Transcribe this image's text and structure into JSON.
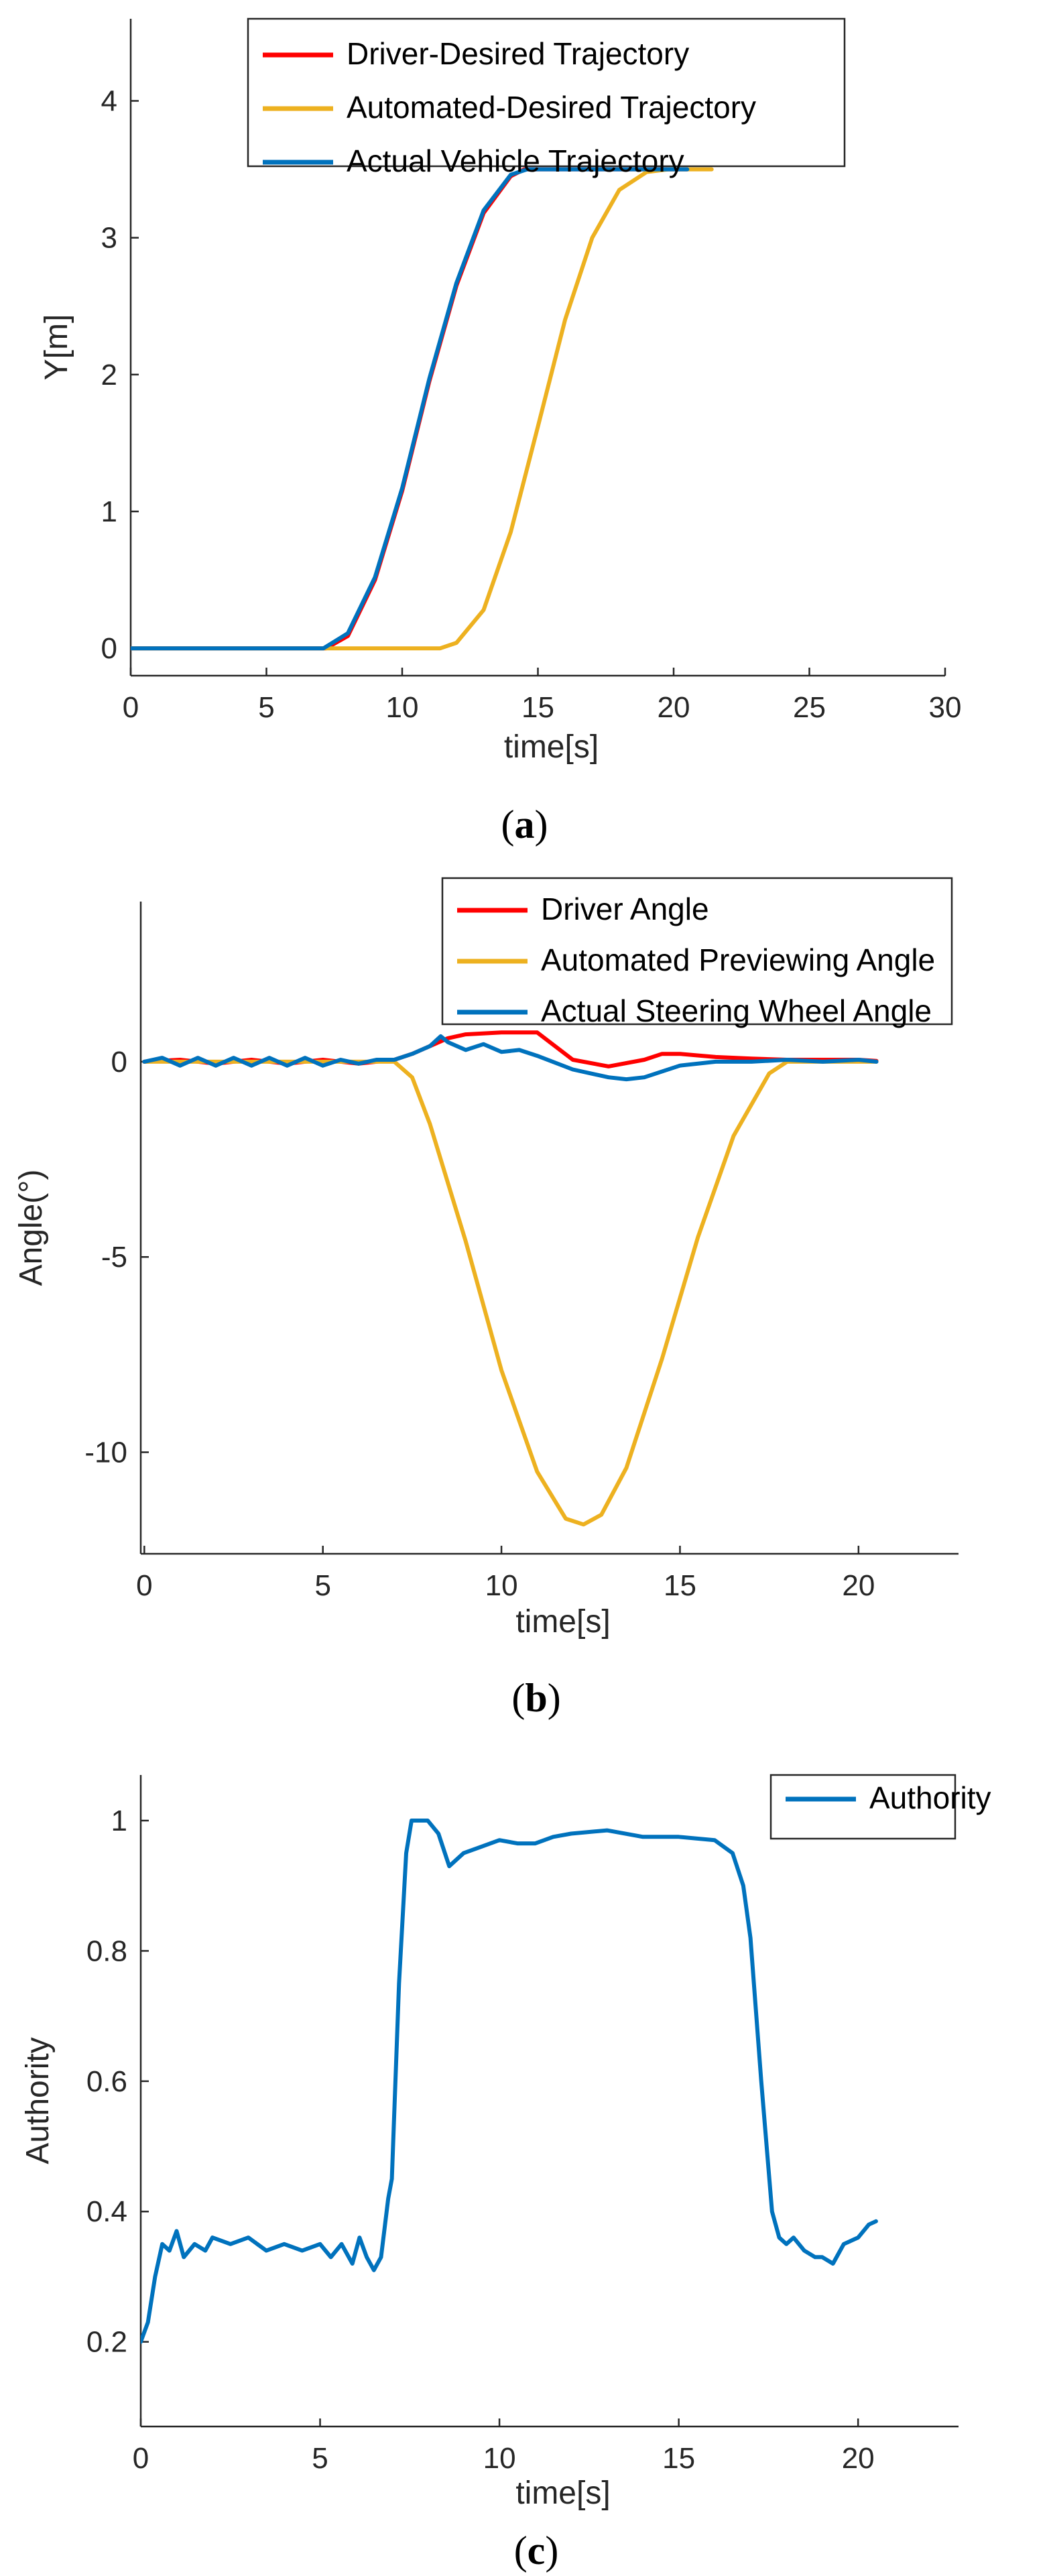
{
  "colors": {
    "red": "#ff0000",
    "yellow": "#edb120",
    "blue": "#0072bd",
    "axis": "#262626"
  },
  "chart_data": [
    {
      "type": "line",
      "caption_label": "a",
      "xlabel": "time[s]",
      "ylabel": "Y[m]",
      "xlim": [
        0,
        30
      ],
      "ylim": [
        -0.2,
        4.6
      ],
      "xticks": [
        0,
        5,
        10,
        15,
        20,
        25,
        30
      ],
      "yticks": [
        0,
        1,
        2,
        3,
        4
      ],
      "legend_position": "top-right",
      "series": [
        {
          "name": "Driver-Desired Trajectory",
          "color": "#ff0000",
          "x": [
            0,
            7.2,
            8,
            9,
            10,
            11,
            12,
            13,
            14,
            14.5,
            15,
            20.5
          ],
          "y": [
            0,
            0,
            0.09,
            0.5,
            1.15,
            1.95,
            2.65,
            3.18,
            3.45,
            3.5,
            3.5,
            3.5
          ]
        },
        {
          "name": "Automated-Desired Trajectory",
          "color": "#edb120",
          "x": [
            0,
            11.4,
            12,
            13,
            14,
            15,
            16,
            17,
            18,
            19,
            19.8,
            21.4
          ],
          "y": [
            0,
            0,
            0.04,
            0.28,
            0.85,
            1.62,
            2.4,
            3.0,
            3.35,
            3.48,
            3.5,
            3.5
          ]
        },
        {
          "name": "Actual Vehicle Trajectory",
          "color": "#0072bd",
          "x": [
            0,
            7.1,
            8,
            9,
            10,
            11,
            12,
            13,
            14,
            14.6,
            15.2,
            20.5
          ],
          "y": [
            0,
            0,
            0.11,
            0.52,
            1.17,
            1.97,
            2.67,
            3.2,
            3.46,
            3.5,
            3.5,
            3.5
          ]
        }
      ]
    },
    {
      "type": "line",
      "caption_label": "b",
      "xlabel": "time[s]",
      "ylabel": "Angle(°)",
      "xlim": [
        -0.1,
        22.8
      ],
      "ylim": [
        -12.6,
        4.1
      ],
      "xticks": [
        0,
        5,
        10,
        15,
        20
      ],
      "yticks": [
        0,
        -5,
        -10
      ],
      "legend_position": "top-right",
      "series": [
        {
          "name": "Driver Angle",
          "color": "#ff0000",
          "x": [
            0,
            1,
            2,
            3,
            4,
            5,
            6,
            7,
            7.5,
            8,
            8.5,
            9,
            10,
            11,
            11.5,
            12,
            13,
            14,
            14.5,
            15,
            16,
            17,
            18,
            19,
            20,
            20.5
          ],
          "y": [
            0,
            0.05,
            -0.05,
            0.05,
            -0.05,
            0.05,
            -0.05,
            0.05,
            0.2,
            0.4,
            0.6,
            0.7,
            0.75,
            0.75,
            0.4,
            0.05,
            -0.12,
            0.05,
            0.2,
            0.2,
            0.12,
            0.08,
            0.05,
            0.05,
            0.05,
            0.02
          ]
        },
        {
          "name": "Automated Previewing Angle",
          "color": "#edb120",
          "x": [
            0,
            7,
            7.5,
            8,
            9,
            10,
            11,
            11.8,
            12.3,
            12.8,
            13.5,
            14.5,
            15.5,
            16.5,
            17.5,
            18,
            20.5
          ],
          "y": [
            0,
            0,
            -0.4,
            -1.6,
            -4.6,
            -7.9,
            -10.5,
            -11.7,
            -11.85,
            -11.6,
            -10.4,
            -7.6,
            -4.5,
            -1.9,
            -0.3,
            0,
            0
          ]
        },
        {
          "name": "Actual Steering Wheel Angle",
          "color": "#0072bd",
          "x": [
            0,
            0.5,
            1,
            1.5,
            2,
            2.5,
            3,
            3.5,
            4,
            4.5,
            5,
            5.5,
            6,
            6.5,
            7,
            7.5,
            8,
            8.3,
            8.5,
            9,
            9.5,
            10,
            10.5,
            11,
            12,
            13,
            13.5,
            14,
            15,
            16,
            17,
            18,
            19,
            20,
            20.5
          ],
          "y": [
            0,
            0.1,
            -0.1,
            0.1,
            -0.1,
            0.1,
            -0.1,
            0.1,
            -0.1,
            0.1,
            -0.1,
            0.05,
            -0.05,
            0.05,
            0.05,
            0.2,
            0.4,
            0.65,
            0.5,
            0.3,
            0.45,
            0.25,
            0.3,
            0.15,
            -0.2,
            -0.4,
            -0.45,
            -0.4,
            -0.1,
            0,
            0,
            0.05,
            0,
            0.05,
            0
          ]
        }
      ]
    },
    {
      "type": "line",
      "caption_label": "c",
      "xlabel": "time[s]",
      "ylabel": "Authority",
      "xlim": [
        0,
        22.8
      ],
      "ylim": [
        0.07,
        1.07
      ],
      "xticks": [
        0,
        5,
        10,
        15,
        20
      ],
      "yticks": [
        0.2,
        0.4,
        0.6,
        0.8,
        1
      ],
      "legend_position": "top-right",
      "series": [
        {
          "name": "Authority",
          "color": "#0072bd",
          "x": [
            0,
            0.2,
            0.4,
            0.6,
            0.8,
            1.0,
            1.2,
            1.5,
            1.8,
            2.0,
            2.5,
            3.0,
            3.5,
            4.0,
            4.5,
            5.0,
            5.3,
            5.6,
            5.9,
            6.1,
            6.3,
            6.5,
            6.7,
            6.9,
            7.0,
            7.2,
            7.4,
            7.55,
            7.65,
            8.0,
            8.3,
            8.6,
            9.0,
            9.5,
            10,
            10.5,
            11,
            11.5,
            12,
            13,
            14,
            15,
            16,
            16.5,
            16.8,
            17.0,
            17.3,
            17.6,
            17.8,
            18.0,
            18.2,
            18.5,
            18.8,
            19.0,
            19.3,
            19.6,
            20.0,
            20.3,
            20.5
          ],
          "y": [
            0.2,
            0.23,
            0.3,
            0.35,
            0.34,
            0.37,
            0.33,
            0.35,
            0.34,
            0.36,
            0.35,
            0.36,
            0.34,
            0.35,
            0.34,
            0.35,
            0.33,
            0.35,
            0.32,
            0.36,
            0.33,
            0.31,
            0.33,
            0.42,
            0.45,
            0.75,
            0.95,
            1.0,
            1.0,
            1.0,
            0.98,
            0.93,
            0.95,
            0.96,
            0.97,
            0.965,
            0.965,
            0.975,
            0.98,
            0.985,
            0.975,
            0.975,
            0.97,
            0.95,
            0.9,
            0.82,
            0.6,
            0.4,
            0.36,
            0.35,
            0.36,
            0.34,
            0.33,
            0.33,
            0.32,
            0.35,
            0.36,
            0.38,
            0.385
          ]
        }
      ]
    }
  ]
}
